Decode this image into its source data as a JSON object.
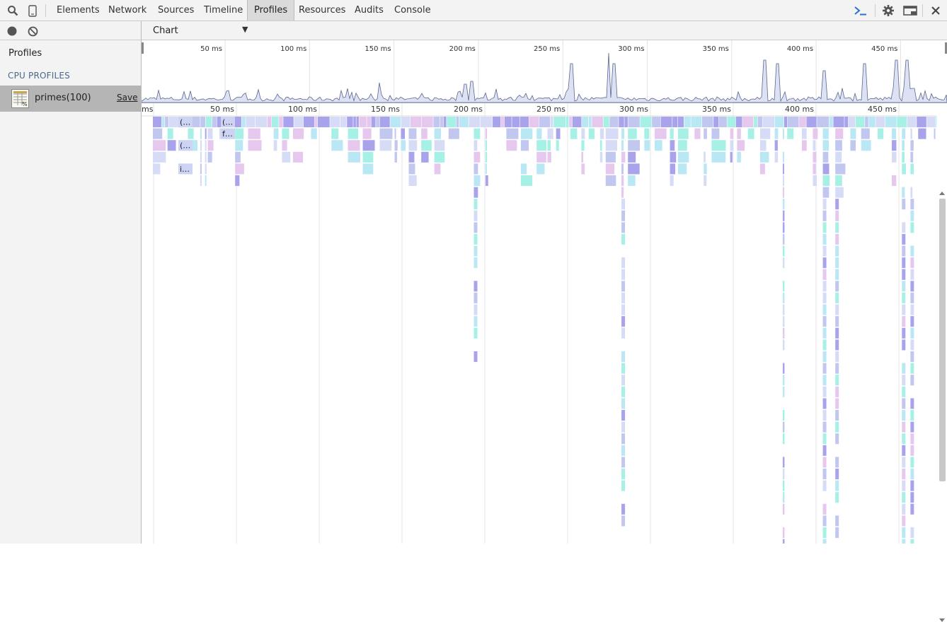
{
  "toolbar": {
    "tabs": [
      {
        "label": "Elements"
      },
      {
        "label": "Network"
      },
      {
        "label": "Sources"
      },
      {
        "label": "Timeline"
      },
      {
        "label": "Profiles",
        "active": true
      },
      {
        "label": "Resources"
      },
      {
        "label": "Audits"
      },
      {
        "label": "Console"
      }
    ],
    "icons": [
      "search-icon",
      "device-mode-icon",
      "console-drawer-icon",
      "settings-gear-icon",
      "dock-side-icon",
      "close-icon"
    ]
  },
  "sidebar": {
    "tools": [
      "record-icon",
      "clear-icon"
    ],
    "title": "Profiles",
    "section": "CPU PROFILES",
    "profile": {
      "name": "primes(100)",
      "save_label": "Save"
    }
  },
  "main": {
    "view_select": "Chart",
    "overview_ticks": [
      "50 ms",
      "100 ms",
      "150 ms",
      "200 ms",
      "250 ms",
      "300 ms",
      "350 ms",
      "400 ms",
      "450 ms"
    ],
    "flame_ticks": [
      "ms",
      "50 ms",
      "100 ms",
      "150 ms",
      "200 ms",
      "250 ms",
      "300 ms",
      "350 ms",
      "400 ms",
      "450 ms"
    ],
    "flame_labels": [
      "(…",
      "(…",
      "f…",
      "(…",
      "i…"
    ]
  },
  "colors": {
    "accent_blue": "#2a6fd6",
    "flame_purple": "#c2c7ef",
    "flame_teal": "#a6f0e6",
    "flame_pink": "#e6c8ef",
    "flame_violet": "#a9a3ec",
    "overview_fill": "#dde1f4",
    "overview_stroke": "#5c6790"
  }
}
